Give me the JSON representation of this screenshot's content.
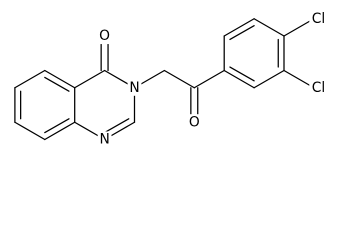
{
  "atoms": [
    {
      "label": "O"
    },
    {
      "label": "N"
    },
    {
      "label": "N"
    },
    {
      "label": "O"
    },
    {
      "label": "Cl"
    },
    {
      "label": "Cl"
    }
  ]
}
